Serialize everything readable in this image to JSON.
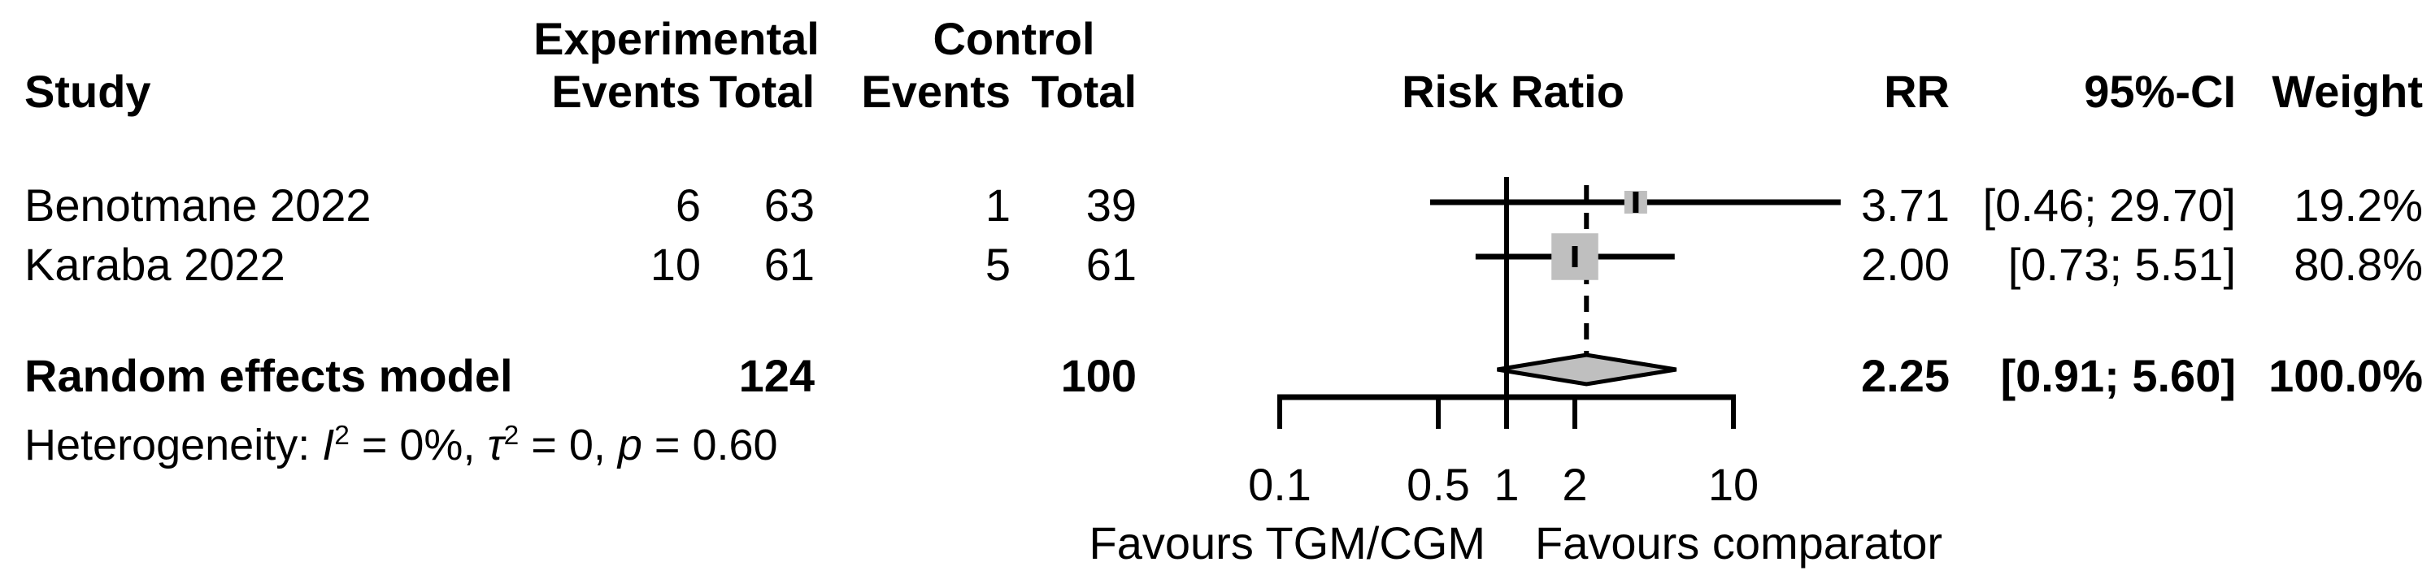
{
  "header": {
    "study": "Study",
    "group_experimental": "Experimental",
    "group_control": "Control",
    "col_events_exp": "Events",
    "col_total_exp": "Total",
    "col_events_ctrl": "Events",
    "col_total_ctrl": "Total",
    "risk_ratio": "Risk Ratio",
    "rr": "RR",
    "ci": "95%-CI",
    "weight": "Weight"
  },
  "table": {
    "rows": [
      {
        "study": "Benotmane 2022",
        "e_events": "6",
        "e_total": "63",
        "c_events": "1",
        "c_total": "39",
        "rr": "3.71",
        "ci": "[0.46; 29.70]",
        "weight": "19.2%"
      },
      {
        "study": "Karaba 2022",
        "e_events": "10",
        "e_total": "61",
        "c_events": "5",
        "c_total": "61",
        "rr": "2.00",
        "ci": "[0.73; 5.51]",
        "weight": "80.8%"
      }
    ],
    "pooled": {
      "study": "Random effects model",
      "e_total": "124",
      "c_total": "100",
      "rr": "2.25",
      "ci": "[0.91; 5.60]",
      "weight": "100.0%"
    }
  },
  "heterogeneity": {
    "prefix": "Heterogeneity: ",
    "i_sym": "I",
    "i_sup": "2",
    "i_rest": " = 0%, ",
    "tau_sym": "τ",
    "tau_sup": "2",
    "tau_rest": " = 0, ",
    "p_sym": "p",
    "p_rest": " = 0.60"
  },
  "chart_data": {
    "type": "forest",
    "x_scale": "log10",
    "x_axis_range": [
      0.1,
      10
    ],
    "x_tick_values": [
      0.1,
      0.5,
      1,
      2,
      10
    ],
    "x_tick_labels": [
      "0.1",
      "0.5",
      "1",
      "2",
      "10"
    ],
    "ref_line": 1,
    "pooled_dashed_line": 2.25,
    "studies": [
      {
        "name": "Benotmane 2022",
        "rr": 3.71,
        "ci_low": 0.46,
        "ci_high": 29.7,
        "weight_pct": 19.2
      },
      {
        "name": "Karaba 2022",
        "rr": 2.0,
        "ci_low": 0.73,
        "ci_high": 5.51,
        "weight_pct": 80.8
      }
    ],
    "pooled": {
      "label": "Random effects model",
      "rr": 2.25,
      "ci_low": 0.91,
      "ci_high": 5.6,
      "weight_pct": 100.0
    },
    "favours_left": "Favours TGM/CGM",
    "favours_right": "Favours comparator",
    "colors": {
      "square_fill": "#bfbfbf",
      "diamond_fill": "#bfbfbf",
      "line": "#000000"
    }
  }
}
